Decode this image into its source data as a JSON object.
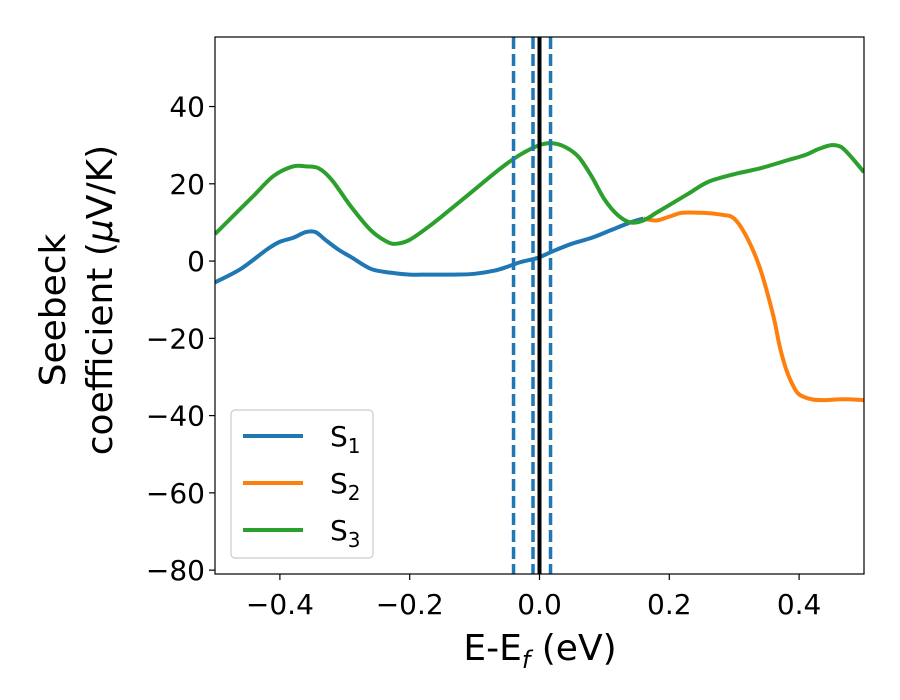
{
  "chart_data": {
    "type": "line",
    "xlabel": {
      "main": "E-E",
      "sub": "f",
      "suffix": " (eV)"
    },
    "ylabel": {
      "line1": "Seebeck",
      "line2_prefix": "coefficient  (",
      "mu": "μ",
      "line2_suffix": "V/K)"
    },
    "xlim": [
      -0.5,
      0.5
    ],
    "ylim": [
      -81,
      58
    ],
    "xticks": [
      -0.4,
      -0.2,
      0.0,
      0.2,
      0.4
    ],
    "xtick_labels": [
      "−0.4",
      "−0.2",
      "0.0",
      "0.2",
      "0.4"
    ],
    "yticks": [
      40,
      20,
      0,
      -20,
      -40,
      -60,
      -80
    ],
    "ytick_labels": [
      "40",
      "20",
      "0",
      "−20",
      "−40",
      "−60",
      "−80"
    ],
    "grid": false,
    "legend_position": "lower-left",
    "vlines": [
      {
        "x": -0.04,
        "style": "dashed",
        "color": "#1f77b4"
      },
      {
        "x": -0.01,
        "style": "dashed",
        "color": "#1f77b4"
      },
      {
        "x": 0.0,
        "style": "solid",
        "color": "#000000"
      },
      {
        "x": 0.017,
        "style": "dashed",
        "color": "#1f77b4"
      }
    ],
    "series": [
      {
        "name": "S",
        "sub": "1",
        "color": "#1f77b4",
        "x": [
          -0.5,
          -0.46,
          -0.42,
          -0.4,
          -0.38,
          -0.36,
          -0.345,
          -0.33,
          -0.31,
          -0.29,
          -0.26,
          -0.23,
          -0.2,
          -0.17,
          -0.13,
          -0.1,
          -0.07,
          -0.05,
          -0.03,
          -0.01,
          0.0,
          0.02,
          0.05,
          0.08,
          0.11,
          0.14,
          0.16
        ],
        "y": [
          -5.5,
          -2,
          3,
          5,
          6,
          7.5,
          7.5,
          5.5,
          3,
          1,
          -2,
          -3,
          -3.5,
          -3.5,
          -3.5,
          -3.3,
          -2.5,
          -1.5,
          -0.3,
          0.5,
          1,
          2.5,
          4.5,
          6,
          8,
          10,
          11
        ]
      },
      {
        "name": "S",
        "sub": "2",
        "color": "#ff7f0e",
        "x": [
          0.16,
          0.18,
          0.2,
          0.22,
          0.25,
          0.28,
          0.3,
          0.32,
          0.34,
          0.36,
          0.37,
          0.38,
          0.39,
          0.4,
          0.42,
          0.44,
          0.46,
          0.48,
          0.5
        ],
        "y": [
          11,
          10.5,
          11.5,
          12.5,
          12.5,
          12,
          11,
          6,
          -2,
          -14,
          -22,
          -28,
          -32,
          -34.5,
          -35.8,
          -36,
          -35.8,
          -35.8,
          -36
        ]
      },
      {
        "name": "S",
        "sub": "3",
        "color": "#2ca02c",
        "x": [
          -0.5,
          -0.47,
          -0.44,
          -0.41,
          -0.38,
          -0.36,
          -0.34,
          -0.32,
          -0.29,
          -0.26,
          -0.235,
          -0.22,
          -0.2,
          -0.17,
          -0.14,
          -0.1,
          -0.06,
          -0.03,
          0.0,
          0.02,
          0.04,
          0.06,
          0.08,
          0.1,
          0.12,
          0.14,
          0.16,
          0.18,
          0.2,
          0.23,
          0.26,
          0.3,
          0.34,
          0.38,
          0.41,
          0.43,
          0.45,
          0.465,
          0.48,
          0.5
        ],
        "y": [
          7,
          12,
          17,
          22,
          24.5,
          24.5,
          24,
          21,
          14,
          8,
          5,
          4.5,
          5.5,
          9,
          13,
          18.5,
          24,
          27.5,
          30,
          30.5,
          29.5,
          27,
          22,
          16,
          12,
          10,
          10.5,
          12.5,
          14.5,
          17.5,
          20.5,
          22.5,
          24,
          26,
          27.5,
          29,
          30,
          29.5,
          27,
          23
        ]
      }
    ]
  }
}
